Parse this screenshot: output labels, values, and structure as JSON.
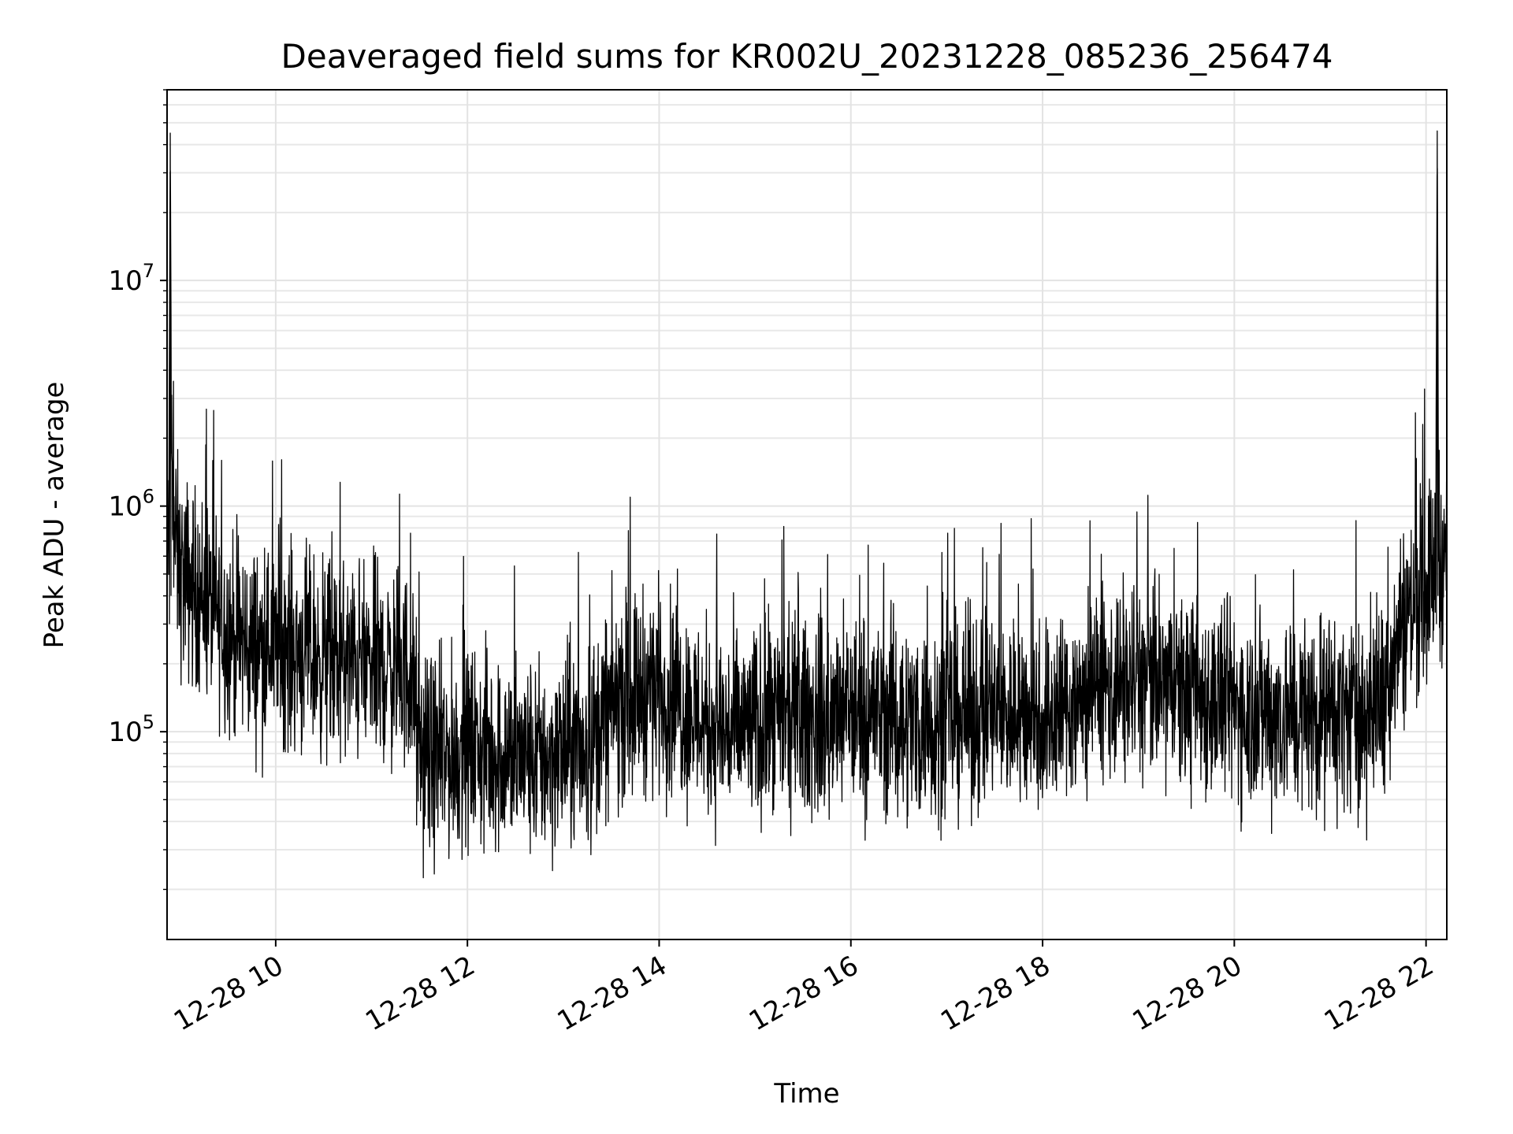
{
  "chart_data": {
    "type": "line",
    "title": "Deaveraged field sums for KR002U_20231228_085236_256474",
    "xlabel": "Time",
    "ylabel": "Peak ADU - average",
    "yscale": "log",
    "xlim": [
      "2023-12-28 08:52",
      "2023-12-28 22:13"
    ],
    "ylim": [
      12000,
      70000000
    ],
    "grid": "on",
    "legend": "none",
    "line_color": "#000000",
    "x_ticks": [
      {
        "value": "2023-12-28 10:00",
        "label": "12-28 10"
      },
      {
        "value": "2023-12-28 12:00",
        "label": "12-28 12"
      },
      {
        "value": "2023-12-28 14:00",
        "label": "12-28 14"
      },
      {
        "value": "2023-12-28 16:00",
        "label": "12-28 16"
      },
      {
        "value": "2023-12-28 18:00",
        "label": "12-28 18"
      },
      {
        "value": "2023-12-28 20:00",
        "label": "12-28 20"
      },
      {
        "value": "2023-12-28 22:00",
        "label": "12-28 22"
      }
    ],
    "y_ticks": [
      {
        "value": 100000,
        "base": "10",
        "exp": "5"
      },
      {
        "value": 1000000,
        "base": "10",
        "exp": "6"
      },
      {
        "value": 10000000,
        "base": "10",
        "exp": "7"
      }
    ],
    "series": [
      {
        "points": [
          [
            "2023-12-28 08:53",
            600000
          ],
          [
            "2023-12-28 08:54",
            45000000
          ],
          [
            "2023-12-28 08:55",
            900000
          ],
          [
            "2023-12-28 09:00",
            500000
          ],
          [
            "2023-12-28 09:15",
            400000
          ],
          [
            "2023-12-28 09:30",
            280000
          ],
          [
            "2023-12-28 09:45",
            240000
          ],
          [
            "2023-12-28 10:00",
            250000
          ],
          [
            "2023-12-28 10:15",
            230000
          ],
          [
            "2023-12-28 10:30",
            210000
          ],
          [
            "2023-12-28 10:45",
            200000
          ],
          [
            "2023-12-28 11:00",
            200000
          ],
          [
            "2023-12-28 11:15",
            190000
          ],
          [
            "2023-12-28 11:25",
            180000
          ],
          [
            "2023-12-28 11:30",
            80000
          ],
          [
            "2023-12-28 11:45",
            75000
          ],
          [
            "2023-12-28 12:00",
            85000
          ],
          [
            "2023-12-28 12:15",
            80000
          ],
          [
            "2023-12-28 12:30",
            78000
          ],
          [
            "2023-12-28 12:45",
            75000
          ],
          [
            "2023-12-28 13:00",
            80000
          ],
          [
            "2023-12-28 13:15",
            85000
          ],
          [
            "2023-12-28 13:30",
            130000
          ],
          [
            "2023-12-28 13:45",
            150000
          ],
          [
            "2023-12-28 14:00",
            160000
          ],
          [
            "2023-12-28 14:15",
            130000
          ],
          [
            "2023-12-28 14:30",
            110000
          ],
          [
            "2023-12-28 14:45",
            100000
          ],
          [
            "2023-12-28 15:00",
            105000
          ],
          [
            "2023-12-28 15:15",
            110000
          ],
          [
            "2023-12-28 15:30",
            115000
          ],
          [
            "2023-12-28 15:45",
            110000
          ],
          [
            "2023-12-28 16:00",
            120000
          ],
          [
            "2023-12-28 16:15",
            120000
          ],
          [
            "2023-12-28 16:30",
            115000
          ],
          [
            "2023-12-28 16:45",
            110000
          ],
          [
            "2023-12-28 17:00",
            115000
          ],
          [
            "2023-12-28 17:15",
            120000
          ],
          [
            "2023-12-28 17:30",
            125000
          ],
          [
            "2023-12-28 17:45",
            120000
          ],
          [
            "2023-12-28 18:00",
            115000
          ],
          [
            "2023-12-28 18:15",
            130000
          ],
          [
            "2023-12-28 18:30",
            150000
          ],
          [
            "2023-12-28 18:45",
            160000
          ],
          [
            "2023-12-28 19:00",
            170000
          ],
          [
            "2023-12-28 19:15",
            160000
          ],
          [
            "2023-12-28 19:30",
            150000
          ],
          [
            "2023-12-28 19:45",
            140000
          ],
          [
            "2023-12-28 20:00",
            130000
          ],
          [
            "2023-12-28 20:15",
            125000
          ],
          [
            "2023-12-28 20:30",
            120000
          ],
          [
            "2023-12-28 20:45",
            120000
          ],
          [
            "2023-12-28 21:00",
            125000
          ],
          [
            "2023-12-28 21:15",
            120000
          ],
          [
            "2023-12-28 21:30",
            130000
          ],
          [
            "2023-12-28 21:45",
            300000
          ],
          [
            "2023-12-28 22:00",
            450000
          ],
          [
            "2023-12-28 22:06",
            550000
          ],
          [
            "2023-12-28 22:07",
            46000000
          ],
          [
            "2023-12-28 22:08",
            600000
          ],
          [
            "2023-12-28 22:12",
            600000
          ]
        ]
      }
    ]
  }
}
